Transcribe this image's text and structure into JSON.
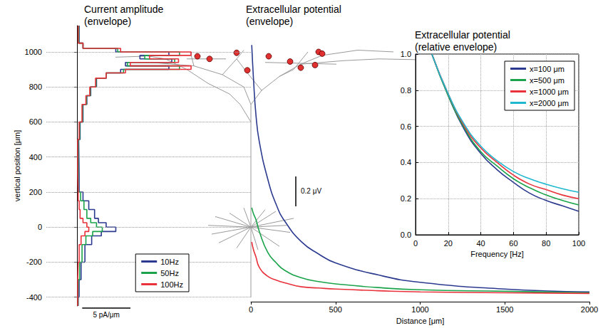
{
  "chart_data": [
    {
      "type": "line",
      "title": "Current amplitude (envelope)",
      "ylabel": "vertical position [μm]",
      "line_style": "step",
      "grid": true,
      "legend": "lower right",
      "tick_labels": "y",
      "xlim": [
        -3.2,
        18
      ],
      "ylim": [
        -450,
        1150
      ],
      "yticks": [
        -400,
        -200,
        0,
        200,
        400,
        600,
        800,
        1000
      ],
      "scale_bar": {
        "value": 5,
        "label": "5 pA/μm"
      },
      "bins": [
        -450,
        -400,
        -300,
        -200,
        -100,
        -50,
        -25,
        0,
        25,
        50,
        100,
        150,
        200,
        300,
        500,
        600,
        700,
        750,
        800,
        850,
        880,
        900,
        920,
        940,
        960,
        980,
        1000,
        1020,
        1050,
        1150
      ],
      "series": [
        {
          "name": "10Hz",
          "color": "#2b3a8f",
          "values": [
            0.1,
            0.2,
            0.4,
            0.8,
            1.5,
            2.5,
            4.0,
            3.0,
            2.2,
            1.8,
            1.2,
            0.6,
            0.2,
            0.15,
            0.3,
            0.6,
            1.0,
            1.4,
            2.0,
            3.0,
            4.5,
            9.5,
            5.0,
            9.8,
            6.5,
            9.5,
            4.0,
            0.6,
            0.2
          ]
        },
        {
          "name": "50Hz",
          "color": "#1aa34a",
          "values": [
            0.08,
            0.12,
            0.25,
            0.5,
            0.9,
            1.6,
            2.6,
            2.0,
            1.4,
            1.0,
            0.7,
            0.35,
            0.1,
            0.1,
            0.25,
            0.55,
            0.95,
            1.35,
            1.95,
            3.0,
            4.8,
            10.6,
            5.2,
            10.1,
            7.0,
            10.6,
            4.2,
            0.6,
            0.15
          ]
        },
        {
          "name": "100Hz",
          "color": "#e8313a",
          "values": [
            0.05,
            0.05,
            0.1,
            0.2,
            0.4,
            0.8,
            1.2,
            1.0,
            0.6,
            0.3,
            0.2,
            0.1,
            0.05,
            0.05,
            0.2,
            0.5,
            0.9,
            1.3,
            1.9,
            3.0,
            5.0,
            11.8,
            5.5,
            10.5,
            7.5,
            11.8,
            4.5,
            0.6,
            0.1
          ]
        }
      ]
    },
    {
      "type": "line",
      "title": "Extracellular potential (envelope)",
      "xlabel": "Distance [μm]",
      "grid": false,
      "tick_labels": "x",
      "xlim": [
        0,
        2000
      ],
      "xticks": [
        0,
        500,
        1000,
        1500,
        2000
      ],
      "ylim": [
        -0.05,
        1.8
      ],
      "scale_bar": {
        "value": 0.2,
        "label": "0.2 μV"
      },
      "x": [
        5,
        15,
        30,
        50,
        100,
        150,
        200,
        300,
        400,
        500,
        750,
        1000,
        1500,
        2000
      ],
      "series": [
        {
          "name": "10Hz",
          "color": "#2b3a8f",
          "values": [
            1.67,
            1.45,
            1.2,
            1.02,
            0.77,
            0.6,
            0.49,
            0.35,
            0.27,
            0.21,
            0.13,
            0.08,
            0.035,
            0.016
          ]
        },
        {
          "name": "50Hz",
          "color": "#1aa34a",
          "values": [
            0.58,
            0.54,
            0.5,
            0.42,
            0.28,
            0.21,
            0.16,
            0.11,
            0.085,
            0.07,
            0.045,
            0.03,
            0.02,
            0.01
          ]
        },
        {
          "name": "100Hz",
          "color": "#e8313a",
          "values": [
            0.35,
            0.3,
            0.25,
            0.18,
            0.12,
            0.095,
            0.077,
            0.05,
            0.042,
            0.035,
            0.024,
            0.016,
            0.01,
            0.006
          ]
        }
      ]
    },
    {
      "type": "line",
      "title": "Extracellular potential (relative envelope)",
      "xlabel": "Frequency [Hz]",
      "grid": true,
      "legend": "upper right",
      "xlim": [
        0,
        100
      ],
      "xticks": [
        0,
        20,
        40,
        60,
        80,
        100
      ],
      "ylim": [
        0,
        1
      ],
      "yticks": [
        {
          "value": 0,
          "label": "0.0"
        },
        {
          "value": 0.2,
          "label": "0.2"
        },
        {
          "value": 0.4,
          "label": "0.4"
        },
        {
          "value": 0.6,
          "label": "0.6"
        },
        {
          "value": 0.8,
          "label": "0.8"
        },
        {
          "value": 1,
          "label": "1.0"
        }
      ],
      "x": [
        10,
        20,
        30,
        40,
        50,
        60,
        70,
        80,
        90,
        100
      ],
      "series": [
        {
          "name": "x=100 μm",
          "color": "#2b3a8f",
          "values": [
            1.0,
            0.77,
            0.58,
            0.45,
            0.36,
            0.29,
            0.23,
            0.19,
            0.16,
            0.13
          ]
        },
        {
          "name": "x=500 μm",
          "color": "#1aa34a",
          "values": [
            1.0,
            0.77,
            0.59,
            0.46,
            0.38,
            0.31,
            0.26,
            0.22,
            0.19,
            0.165
          ]
        },
        {
          "name": "x=1000 μm",
          "color": "#e8313a",
          "values": [
            1.0,
            0.78,
            0.6,
            0.48,
            0.4,
            0.33,
            0.28,
            0.25,
            0.22,
            0.2
          ]
        },
        {
          "name": "x=2000 μm",
          "color": "#1fb8d0",
          "values": [
            1.0,
            0.78,
            0.61,
            0.49,
            0.41,
            0.35,
            0.31,
            0.28,
            0.255,
            0.235
          ]
        }
      ]
    }
  ]
}
